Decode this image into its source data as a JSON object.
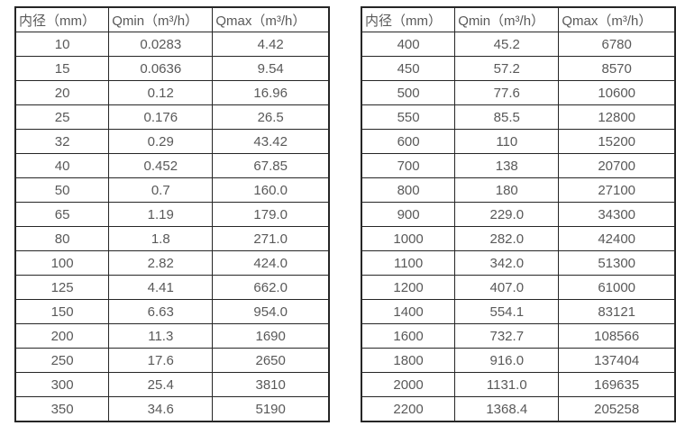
{
  "page": {
    "background_color": "#ffffff",
    "text_color": "#595959",
    "border_color": "#262626"
  },
  "tables": [
    {
      "id": "flow-table-small-diameters",
      "headers": [
        "内径（mm）",
        "Qmin（m³/h）",
        "Qmax（m³/h）"
      ],
      "rows": [
        [
          "10",
          "0.0283",
          "4.42"
        ],
        [
          "15",
          "0.0636",
          "9.54"
        ],
        [
          "20",
          "0.12",
          "16.96"
        ],
        [
          "25",
          "0.176",
          "26.5"
        ],
        [
          "32",
          "0.29",
          "43.42"
        ],
        [
          "40",
          "0.452",
          "67.85"
        ],
        [
          "50",
          "0.7",
          "160.0"
        ],
        [
          "65",
          "1.19",
          "179.0"
        ],
        [
          "80",
          "1.8",
          "271.0"
        ],
        [
          "100",
          "2.82",
          "424.0"
        ],
        [
          "125",
          "4.41",
          "662.0"
        ],
        [
          "150",
          "6.63",
          "954.0"
        ],
        [
          "200",
          "11.3",
          "1690"
        ],
        [
          "250",
          "17.6",
          "2650"
        ],
        [
          "300",
          "25.4",
          "3810"
        ],
        [
          "350",
          "34.6",
          "5190"
        ]
      ]
    },
    {
      "id": "flow-table-large-diameters",
      "headers": [
        "内径（mm）",
        "Qmin（m³/h）",
        "Qmax（m³/h）"
      ],
      "rows": [
        [
          "400",
          "45.2",
          "6780"
        ],
        [
          "450",
          "57.2",
          "8570"
        ],
        [
          "500",
          "77.6",
          "10600"
        ],
        [
          "550",
          "85.5",
          "12800"
        ],
        [
          "600",
          "110",
          "15200"
        ],
        [
          "700",
          "138",
          "20700"
        ],
        [
          "800",
          "180",
          "27100"
        ],
        [
          "900",
          "229.0",
          "34300"
        ],
        [
          "1000",
          "282.0",
          "42400"
        ],
        [
          "1100",
          "342.0",
          "51300"
        ],
        [
          "1200",
          "407.0",
          "61000"
        ],
        [
          "1400",
          "554.1",
          "83121"
        ],
        [
          "1600",
          "732.7",
          "108566"
        ],
        [
          "1800",
          "916.0",
          "137404"
        ],
        [
          "2000",
          "1131.0",
          "169635"
        ],
        [
          "2200",
          "1368.4",
          "205258"
        ]
      ]
    }
  ]
}
